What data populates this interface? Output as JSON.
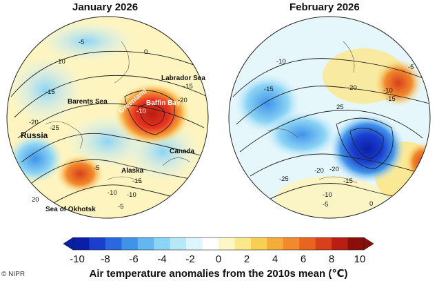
{
  "panels": [
    {
      "title": "January 2026",
      "places": [
        "Labrador Sea",
        "Greenland",
        "Baffin Bay",
        "Barents Sea",
        "Russia",
        "Canada",
        "Alaska",
        "Sea of Okhotsk"
      ],
      "contour_values": [
        "-5",
        "-10",
        "-15",
        "-20",
        "-25",
        "-10",
        "-15",
        "-20",
        "0",
        "-5",
        "-10",
        "-15",
        "-10",
        "-5",
        "20"
      ],
      "anomaly_colors": [
        "#e8311f",
        "#f7a23a",
        "#fde68a",
        "#9fe3f5",
        "#3fa9e6"
      ]
    },
    {
      "title": "February 2026",
      "places": [],
      "contour_values": [
        "-10",
        "-15",
        "-20",
        "-10",
        "-15",
        "-5",
        "25",
        "-20",
        "-25",
        "-15",
        "-10",
        "-5",
        "0",
        "-20"
      ],
      "anomaly_colors": [
        "#1f3fcf",
        "#3b7fe0",
        "#a8e4f7",
        "#fde68a",
        "#f08a2a"
      ]
    }
  ],
  "colorbar": {
    "ticks": [
      "-10",
      "-8",
      "-6",
      "-4",
      "-2",
      "0",
      "2",
      "4",
      "6",
      "8",
      "10"
    ],
    "colors": [
      "#0a1fa8",
      "#1a3fcf",
      "#2a68e0",
      "#3f93ea",
      "#63b6f0",
      "#8cd4f5",
      "#b5e8f8",
      "#ddf5fb",
      "#ffffff",
      "#fdf7c8",
      "#fbe88a",
      "#f8cf55",
      "#f5ad3a",
      "#f18a2c",
      "#e8651f",
      "#d8401a",
      "#b81f12",
      "#8a0f0a"
    ],
    "title": "Air temperature anomalies from the 2010s mean (℃)"
  },
  "credit": "© NIPR"
}
